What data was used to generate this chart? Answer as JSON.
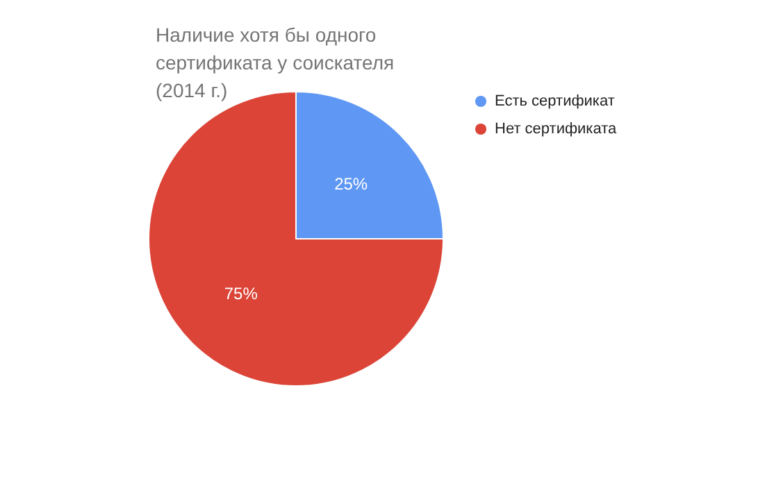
{
  "chart_data": {
    "type": "pie",
    "title": "Наличие хотя бы одного сертификата у соискателя (2014 г.)",
    "categories": [
      "Есть сертификат",
      "Нет сертификата"
    ],
    "values": [
      25,
      75
    ],
    "colors": [
      "#5f97f4",
      "#db4437"
    ],
    "value_labels": [
      "25%",
      "75%"
    ],
    "legend": "top right"
  }
}
